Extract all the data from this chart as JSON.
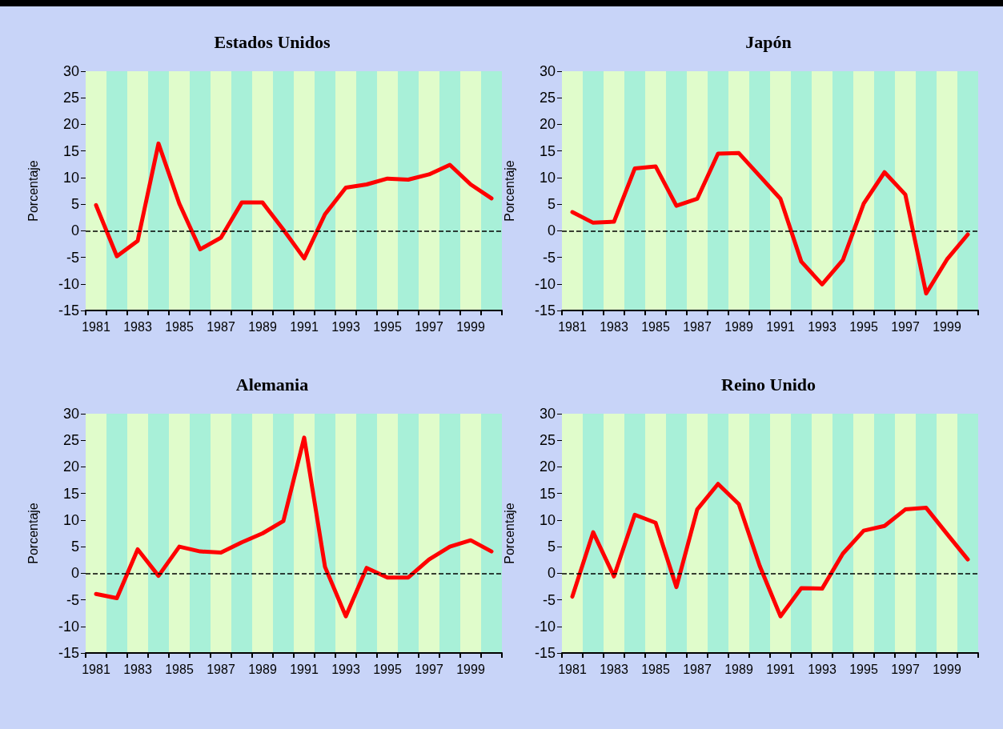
{
  "chart_data": [
    {
      "type": "line",
      "title": "Estados Unidos",
      "ylabel": "Porcentaje",
      "categories": [
        "1981",
        null,
        "1983",
        null,
        "1985",
        null,
        "1987",
        null,
        "1989",
        null,
        "1991",
        null,
        "1993",
        null,
        "1995",
        null,
        "1997",
        null,
        "1999",
        null
      ],
      "series": [
        {
          "color": "#ff0000",
          "values": [
            4.8,
            -4.8,
            -1.9,
            16.4,
            5.1,
            -3.5,
            -1.3,
            5.3,
            5.3,
            0.2,
            -5.2,
            3.1,
            8.1,
            8.7,
            9.8,
            9.6,
            10.6,
            12.4,
            8.7,
            6.1
          ]
        }
      ],
      "ylim": [
        -15,
        30
      ],
      "yticks": [
        -15,
        -10,
        -5,
        0,
        5,
        10,
        15,
        20,
        25,
        30
      ],
      "ref_lines": [
        {
          "axis": "y",
          "value": 0,
          "color": "#000000",
          "line_style": "dashed"
        }
      ],
      "line_style": "solid",
      "marker": "none",
      "grid": false
    },
    {
      "type": "line",
      "title": "Japón",
      "ylabel": "Porcentaje",
      "categories": [
        "1981",
        null,
        "1983",
        null,
        "1985",
        null,
        "1987",
        null,
        "1989",
        null,
        "1991",
        null,
        "1993",
        null,
        "1995",
        null,
        "1997",
        null,
        "1999",
        null
      ],
      "series": [
        {
          "color": "#ff0000",
          "values": [
            3.5,
            1.5,
            1.7,
            11.7,
            12.1,
            4.7,
            6.0,
            14.5,
            14.6,
            10.3,
            6.0,
            -5.8,
            -10.1,
            -5.5,
            5.1,
            11.0,
            6.8,
            -11.8,
            -5.4,
            -0.7
          ]
        }
      ],
      "ylim": [
        -15,
        30
      ],
      "yticks": [
        -15,
        -10,
        -5,
        0,
        5,
        10,
        15,
        20,
        25,
        30
      ],
      "ref_lines": [
        {
          "axis": "y",
          "value": 0,
          "color": "#000000",
          "line_style": "dashed"
        }
      ],
      "line_style": "solid",
      "marker": "none",
      "grid": false
    },
    {
      "type": "line",
      "title": "Alemania",
      "ylabel": "Porcentaje",
      "categories": [
        "1981",
        null,
        "1983",
        null,
        "1985",
        null,
        "1987",
        null,
        "1989",
        null,
        "1991",
        null,
        "1993",
        null,
        "1995",
        null,
        "1997",
        null,
        "1999",
        null
      ],
      "series": [
        {
          "color": "#ff0000",
          "values": [
            -3.9,
            -4.7,
            4.5,
            -0.5,
            5.0,
            4.1,
            3.9,
            5.8,
            7.5,
            9.8,
            25.5,
            1.2,
            -8.1,
            1.0,
            -0.8,
            -0.8,
            2.6,
            5.0,
            6.2,
            4.1
          ]
        }
      ],
      "ylim": [
        -15,
        30
      ],
      "yticks": [
        -15,
        -10,
        -5,
        0,
        5,
        10,
        15,
        20,
        25,
        30
      ],
      "ref_lines": [
        {
          "axis": "y",
          "value": 0,
          "color": "#000000",
          "line_style": "dashed"
        }
      ],
      "line_style": "solid",
      "marker": "none",
      "grid": false
    },
    {
      "type": "line",
      "title": "Reino Unido",
      "ylabel": "Porcentaje",
      "categories": [
        "1981",
        null,
        "1983",
        null,
        "1985",
        null,
        "1987",
        null,
        "1989",
        null,
        "1991",
        null,
        "1993",
        null,
        "1995",
        null,
        "1997",
        null,
        "1999",
        null
      ],
      "series": [
        {
          "color": "#ff0000",
          "values": [
            -4.4,
            7.7,
            -0.6,
            11.0,
            9.5,
            -2.6,
            12.0,
            16.8,
            13.0,
            1.4,
            -8.1,
            -2.8,
            -2.9,
            3.7,
            8.0,
            8.9,
            12.0,
            12.3,
            7.4,
            2.6
          ]
        }
      ],
      "ylim": [
        -15,
        30
      ],
      "yticks": [
        -15,
        -10,
        -5,
        0,
        5,
        10,
        15,
        20,
        25,
        30
      ],
      "ref_lines": [
        {
          "axis": "y",
          "value": 0,
          "color": "#000000",
          "line_style": "dashed"
        }
      ],
      "line_style": "solid",
      "marker": "none",
      "grid": false
    }
  ]
}
